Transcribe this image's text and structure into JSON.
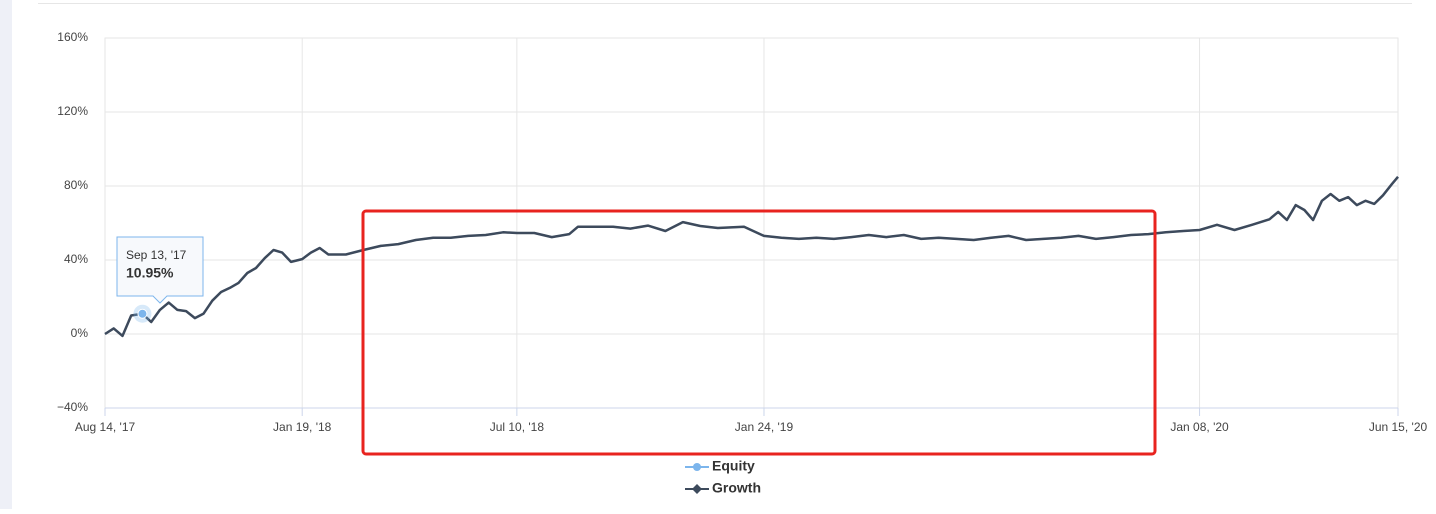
{
  "chart_data": {
    "type": "line",
    "x": [
      "2017-08-14",
      "2017-08-21",
      "2017-08-28",
      "2017-09-04",
      "2017-09-13",
      "2017-09-20",
      "2017-09-27",
      "2017-10-04",
      "2017-10-11",
      "2017-10-18",
      "2017-10-25",
      "2017-11-01",
      "2017-11-08",
      "2017-11-15",
      "2017-11-22",
      "2017-11-29",
      "2017-12-06",
      "2017-12-13",
      "2017-12-20",
      "2017-12-27",
      "2018-01-03",
      "2018-01-10",
      "2018-01-19",
      "2018-01-26",
      "2018-02-02",
      "2018-02-09",
      "2018-02-23",
      "2018-03-09",
      "2018-03-23",
      "2018-04-06",
      "2018-04-20",
      "2018-05-04",
      "2018-05-18",
      "2018-06-01",
      "2018-06-15",
      "2018-06-29",
      "2018-07-10",
      "2018-07-24",
      "2018-08-07",
      "2018-08-21",
      "2018-08-28",
      "2018-09-11",
      "2018-09-25",
      "2018-10-09",
      "2018-10-23",
      "2018-11-06",
      "2018-11-20",
      "2018-12-04",
      "2018-12-18",
      "2019-01-08",
      "2019-01-24",
      "2019-02-07",
      "2019-02-21",
      "2019-03-07",
      "2019-03-21",
      "2019-04-04",
      "2019-04-18",
      "2019-05-02",
      "2019-05-16",
      "2019-05-30",
      "2019-06-13",
      "2019-06-27",
      "2019-07-11",
      "2019-07-25",
      "2019-08-08",
      "2019-08-22",
      "2019-09-05",
      "2019-09-19",
      "2019-10-03",
      "2019-10-17",
      "2019-10-31",
      "2019-11-14",
      "2019-11-28",
      "2019-12-12",
      "2019-12-26",
      "2020-01-08",
      "2020-01-22",
      "2020-02-05",
      "2020-02-19",
      "2020-03-04",
      "2020-03-11",
      "2020-03-18",
      "2020-03-25",
      "2020-04-01",
      "2020-04-08",
      "2020-04-15",
      "2020-04-22",
      "2020-04-29",
      "2020-05-06",
      "2020-05-13",
      "2020-05-20",
      "2020-05-27",
      "2020-06-03",
      "2020-06-10",
      "2020-06-15"
    ],
    "series": [
      {
        "name": "Equity",
        "color": "#7cb5ec",
        "values": [
          0,
          3,
          -1,
          10,
          10.95,
          6.5,
          13,
          17,
          13,
          12.4,
          8.6,
          11,
          18,
          22.7,
          24.9,
          27.6,
          33,
          35.7,
          41,
          45.4,
          44,
          39,
          40.5,
          44,
          46.5,
          43,
          43,
          45.4,
          47.6,
          48.6,
          50.8,
          52,
          52,
          53,
          53.5,
          55,
          54.6,
          54.6,
          52.4,
          54,
          58,
          58,
          58,
          57,
          58.6,
          55.7,
          60.5,
          58.4,
          57.3,
          58,
          53,
          52,
          51.4,
          52,
          51.4,
          52.4,
          53.5,
          52.4,
          53.5,
          51.4,
          52,
          51.4,
          50.8,
          52,
          53,
          50.8,
          51.4,
          52,
          53,
          51.4,
          52.4,
          53.5,
          54,
          55,
          55.7,
          56.2,
          59,
          56.2,
          59,
          62,
          66,
          61.6,
          69.7,
          67,
          61.6,
          72,
          75.7,
          72,
          74,
          69.7,
          72,
          70.3,
          75,
          81,
          85
        ]
      },
      {
        "name": "Growth",
        "color": "#3d4a5c",
        "values": [
          0,
          3,
          -1,
          10,
          10.95,
          6.5,
          13,
          17,
          13,
          12.4,
          8.6,
          11,
          18,
          22.7,
          24.9,
          27.6,
          33,
          35.7,
          41,
          45.4,
          44,
          39,
          40.5,
          44,
          46.5,
          43,
          43,
          45.4,
          47.6,
          48.6,
          50.8,
          52,
          52,
          53,
          53.5,
          55,
          54.6,
          54.6,
          52.4,
          54,
          58,
          58,
          58,
          57,
          58.6,
          55.7,
          60.5,
          58.4,
          57.3,
          58,
          53,
          52,
          51.4,
          52,
          51.4,
          52.4,
          53.5,
          52.4,
          53.5,
          51.4,
          52,
          51.4,
          50.8,
          52,
          53,
          50.8,
          51.4,
          52,
          53,
          51.4,
          52.4,
          53.5,
          54,
          55,
          55.7,
          56.2,
          59,
          56.2,
          59,
          62,
          66,
          61.6,
          69.7,
          67,
          61.6,
          72,
          75.7,
          72,
          74,
          69.7,
          72,
          70.3,
          75,
          81,
          85
        ]
      }
    ],
    "xlim": [
      "2017-08-14",
      "2020-06-15"
    ],
    "xticks": [
      {
        "value": "2017-08-14",
        "label": "Aug 14, '17"
      },
      {
        "value": "2018-01-19",
        "label": "Jan 19, '18"
      },
      {
        "value": "2018-07-10",
        "label": "Jul 10, '18"
      },
      {
        "value": "2019-01-24",
        "label": "Jan 24, '19"
      },
      {
        "value": "2020-01-08",
        "label": "Jan 08, '20"
      },
      {
        "value": "2020-06-15",
        "label": "Jun 15, '20"
      }
    ],
    "ylim": [
      -40,
      160
    ],
    "yticks": [
      {
        "value": -40,
        "label": "−40%"
      },
      {
        "value": 0,
        "label": "0%"
      },
      {
        "value": 40,
        "label": "40%"
      },
      {
        "value": 80,
        "label": "80%"
      },
      {
        "value": 120,
        "label": "120%"
      },
      {
        "value": 160,
        "label": "160%"
      }
    ],
    "grid": true,
    "tooltip": {
      "date": "Sep 13, '17",
      "value": "10.95%"
    }
  }
}
